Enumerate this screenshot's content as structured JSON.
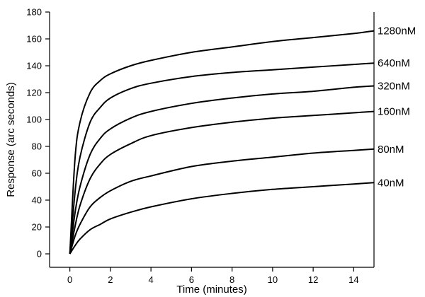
{
  "chart_data": {
    "type": "line",
    "title": "",
    "xlabel": "Time (minutes)",
    "ylabel": "Response (arc seconds)",
    "xlim": [
      -1,
      15
    ],
    "ylim": [
      -10,
      180
    ],
    "xticks": [
      0,
      2,
      4,
      6,
      8,
      10,
      12,
      14
    ],
    "yticks": [
      0,
      20,
      40,
      60,
      80,
      100,
      120,
      140,
      160,
      180
    ],
    "grid": false,
    "legend": "right-inline labels",
    "series": [
      {
        "name": "1280nM",
        "x": [
          0,
          0.25,
          0.5,
          1,
          1.5,
          2,
          3,
          4,
          6,
          8,
          10,
          12,
          14,
          15
        ],
        "y": [
          0,
          70,
          98,
          120,
          129,
          134,
          140,
          144,
          150,
          154,
          158,
          161,
          164,
          166
        ]
      },
      {
        "name": "640nM",
        "x": [
          0,
          0.25,
          0.5,
          1,
          1.5,
          2,
          3,
          4,
          6,
          8,
          10,
          12,
          14,
          15
        ],
        "y": [
          0,
          45,
          72,
          98,
          109,
          116,
          123,
          127,
          132,
          135,
          137,
          139,
          141,
          142
        ]
      },
      {
        "name": "320nM",
        "x": [
          0,
          0.25,
          0.5,
          1,
          1.5,
          2,
          3,
          4,
          6,
          8,
          10,
          12,
          14,
          15
        ],
        "y": [
          0,
          30,
          50,
          74,
          86,
          93,
          101,
          106,
          112,
          116,
          119,
          121,
          124,
          125
        ]
      },
      {
        "name": "160nM",
        "x": [
          0,
          0.25,
          0.5,
          1,
          1.5,
          2,
          3,
          4,
          6,
          8,
          10,
          12,
          14,
          15
        ],
        "y": [
          0,
          20,
          36,
          56,
          67,
          74,
          82,
          88,
          94,
          98,
          101,
          103,
          105,
          106
        ]
      },
      {
        "name": "80nM",
        "x": [
          0,
          0.25,
          0.5,
          1,
          1.5,
          2,
          3,
          4,
          6,
          8,
          10,
          12,
          14,
          15
        ],
        "y": [
          0,
          13,
          22,
          35,
          42,
          47,
          54,
          58,
          65,
          69,
          72,
          75,
          77,
          78
        ]
      },
      {
        "name": "40nM",
        "x": [
          0,
          0.25,
          0.5,
          1,
          1.5,
          2,
          3,
          4,
          6,
          8,
          10,
          12,
          14,
          15
        ],
        "y": [
          0,
          6,
          11,
          18,
          22,
          26,
          31,
          35,
          41,
          45,
          48,
          50,
          52,
          53
        ]
      }
    ]
  }
}
